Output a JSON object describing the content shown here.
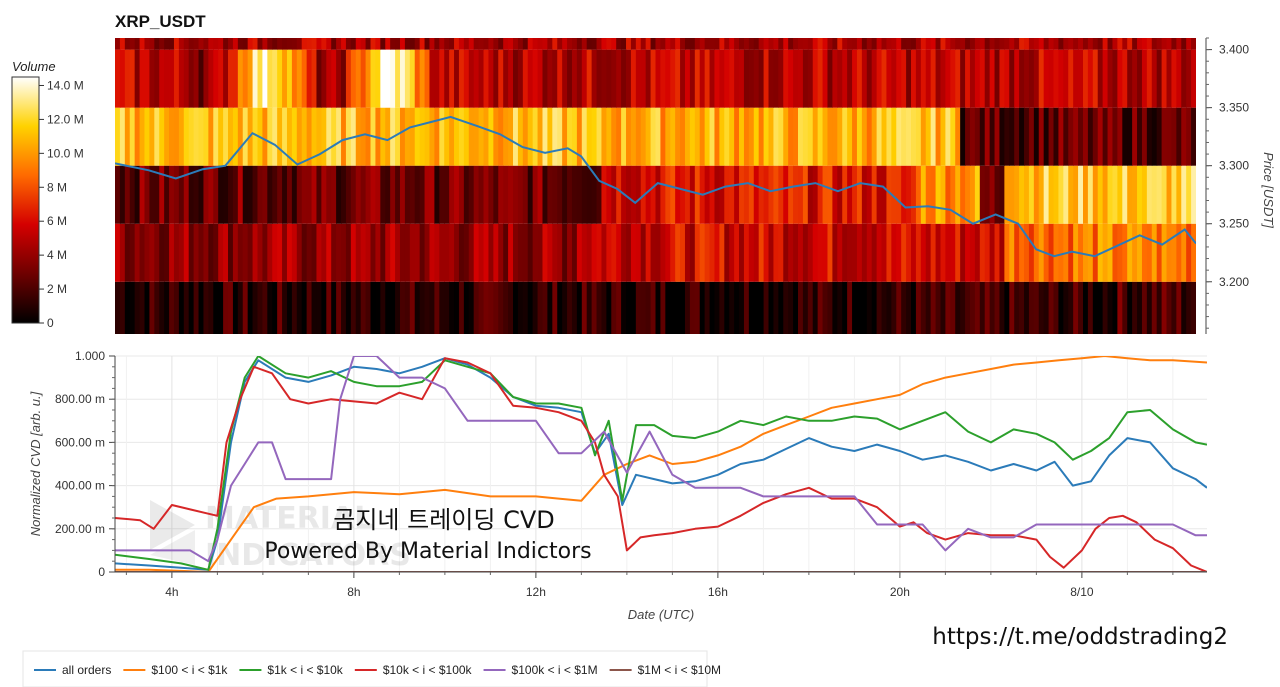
{
  "watermark": {
    "line1": "곰지네 트레이딩 CVD",
    "line2": "Powered By Material Indictors",
    "url": "https://t.me/oddstrading2",
    "logo_text": [
      "MATERIAL",
      "INDICATORS"
    ]
  },
  "chart_data": [
    {
      "type": "heatmap",
      "title": "XRP_USDT",
      "ylabel": "Price [USDT]",
      "yticks": [
        "3.200",
        "3.250",
        "3.300",
        "3.350",
        "3.400"
      ],
      "ylim": [
        3.155,
        3.41
      ],
      "xlim_hours": [
        2.75,
        26.75
      ],
      "colorbar": {
        "title": "Volume",
        "ticks": [
          "0",
          "2 M",
          "4 M",
          "6 M",
          "8 M",
          "10.0 M",
          "12.0 M",
          "14.0 M"
        ],
        "range": [
          0,
          14.5
        ]
      },
      "price_bins": [
        {
          "low": 3.155,
          "high": 3.2,
          "level": 0.08
        },
        {
          "low": 3.2,
          "high": 3.25,
          "level": 0.28
        },
        {
          "low": 3.25,
          "high": 3.3,
          "level": 0.25
        },
        {
          "low": 3.3,
          "high": 3.35,
          "level": 0.62
        },
        {
          "low": 3.35,
          "high": 3.4,
          "level": 0.4
        },
        {
          "low": 3.4,
          "high": 3.41,
          "level": 0.32
        }
      ],
      "price_series": {
        "color": "#2b7bb9",
        "hours": [
          2.75,
          3.5,
          4.1,
          4.7,
          5.2,
          5.8,
          6.3,
          6.8,
          7.3,
          7.8,
          8.3,
          8.8,
          9.3,
          9.8,
          10.2,
          10.8,
          11.3,
          11.8,
          12.3,
          12.8,
          13.1,
          13.5,
          13.9,
          14.3,
          14.8,
          15.3,
          15.8,
          16.3,
          16.8,
          17.3,
          17.8,
          18.3,
          18.8,
          19.3,
          19.8,
          20.3,
          20.8,
          21.3,
          21.8,
          22.3,
          22.8,
          23.2,
          23.6,
          24.0,
          24.5,
          25.0,
          25.5,
          26.0,
          26.5,
          26.75
        ],
        "prices": [
          3.302,
          3.296,
          3.289,
          3.297,
          3.3,
          3.328,
          3.318,
          3.301,
          3.31,
          3.322,
          3.327,
          3.322,
          3.333,
          3.338,
          3.342,
          3.334,
          3.327,
          3.316,
          3.311,
          3.315,
          3.308,
          3.287,
          3.28,
          3.268,
          3.285,
          3.28,
          3.275,
          3.282,
          3.285,
          3.278,
          3.282,
          3.285,
          3.278,
          3.285,
          3.282,
          3.264,
          3.265,
          3.262,
          3.25,
          3.258,
          3.25,
          3.228,
          3.222,
          3.226,
          3.222,
          3.231,
          3.24,
          3.232,
          3.245,
          3.233
        ]
      }
    },
    {
      "type": "line",
      "ylabel": "Normalized CVD [arb. u.]",
      "xlabel": "Date (UTC)",
      "yticks": [
        "0",
        "200.00 m",
        "400.00 m",
        "600.00 m",
        "800.00 m",
        "1.000"
      ],
      "ylim": [
        0,
        1.0
      ],
      "xlim_hours": [
        2.75,
        26.75
      ],
      "x_ticks": [
        {
          "hour": 4,
          "label": "4h"
        },
        {
          "hour": 8,
          "label": "8h"
        },
        {
          "hour": 12,
          "label": "12h"
        },
        {
          "hour": 16,
          "label": "16h"
        },
        {
          "hour": 20,
          "label": "20h"
        },
        {
          "hour": 24,
          "label": "8/10"
        }
      ],
      "series": [
        {
          "name": "all orders",
          "color": "#2b7bb9",
          "hours": [
            2.75,
            3.5,
            4.2,
            4.8,
            5.0,
            5.3,
            5.6,
            5.9,
            6.5,
            7.0,
            7.5,
            8.0,
            8.5,
            9.0,
            9.5,
            10.0,
            10.5,
            11.0,
            11.5,
            12.0,
            12.5,
            13.0,
            13.3,
            13.6,
            13.9,
            14.2,
            14.6,
            15.0,
            15.5,
            16.0,
            16.5,
            17.0,
            17.5,
            18.0,
            18.5,
            19.0,
            19.5,
            20.0,
            20.5,
            21.0,
            21.5,
            22.0,
            22.5,
            23.0,
            23.4,
            23.8,
            24.2,
            24.6,
            25.0,
            25.5,
            26.0,
            26.5,
            26.75
          ],
          "values": [
            0.04,
            0.03,
            0.02,
            0.01,
            0.15,
            0.6,
            0.88,
            0.98,
            0.9,
            0.88,
            0.91,
            0.95,
            0.94,
            0.92,
            0.95,
            0.99,
            0.96,
            0.9,
            0.81,
            0.77,
            0.76,
            0.74,
            0.55,
            0.64,
            0.31,
            0.45,
            0.43,
            0.41,
            0.42,
            0.45,
            0.5,
            0.52,
            0.57,
            0.62,
            0.58,
            0.56,
            0.59,
            0.56,
            0.52,
            0.54,
            0.51,
            0.47,
            0.5,
            0.47,
            0.51,
            0.4,
            0.42,
            0.54,
            0.62,
            0.6,
            0.48,
            0.43,
            0.39
          ]
        },
        {
          "name": "$100 < i < $1k",
          "color": "#ff7f0e",
          "hours": [
            2.75,
            3.5,
            4.2,
            4.8,
            5.3,
            5.8,
            6.3,
            7.0,
            8.0,
            9.0,
            10.0,
            11.0,
            12.0,
            12.5,
            13.0,
            13.5,
            14.0,
            14.5,
            15.0,
            15.5,
            16.0,
            16.5,
            17.0,
            17.5,
            18.0,
            18.5,
            19.0,
            19.5,
            20.0,
            20.5,
            21.0,
            21.5,
            22.0,
            22.5,
            23.0,
            23.5,
            24.0,
            24.5,
            25.0,
            25.5,
            26.0,
            26.75
          ],
          "values": [
            0.01,
            0.01,
            0.005,
            0.0,
            0.15,
            0.3,
            0.34,
            0.35,
            0.37,
            0.36,
            0.38,
            0.35,
            0.35,
            0.34,
            0.33,
            0.45,
            0.5,
            0.54,
            0.5,
            0.51,
            0.54,
            0.58,
            0.64,
            0.68,
            0.72,
            0.76,
            0.78,
            0.8,
            0.82,
            0.87,
            0.9,
            0.92,
            0.94,
            0.96,
            0.97,
            0.98,
            0.99,
            1.0,
            0.99,
            0.98,
            0.98,
            0.97
          ]
        },
        {
          "name": "$1k < i < $10k",
          "color": "#2ca02c",
          "hours": [
            2.75,
            3.5,
            4.2,
            4.8,
            5.0,
            5.3,
            5.6,
            5.9,
            6.5,
            7.0,
            7.5,
            8.0,
            8.5,
            9.0,
            9.5,
            10.0,
            10.5,
            11.0,
            11.5,
            12.0,
            12.5,
            13.0,
            13.3,
            13.6,
            13.9,
            14.2,
            14.6,
            15.0,
            15.5,
            16.0,
            16.5,
            17.0,
            17.5,
            18.0,
            18.5,
            19.0,
            19.5,
            20.0,
            20.5,
            21.0,
            21.5,
            22.0,
            22.5,
            23.0,
            23.4,
            23.8,
            24.2,
            24.6,
            25.0,
            25.5,
            26.0,
            26.5,
            26.75
          ],
          "values": [
            0.08,
            0.06,
            0.04,
            0.01,
            0.2,
            0.65,
            0.9,
            1.0,
            0.92,
            0.9,
            0.93,
            0.88,
            0.86,
            0.86,
            0.88,
            0.98,
            0.95,
            0.92,
            0.81,
            0.78,
            0.78,
            0.76,
            0.54,
            0.7,
            0.33,
            0.68,
            0.68,
            0.63,
            0.62,
            0.65,
            0.7,
            0.68,
            0.72,
            0.7,
            0.7,
            0.72,
            0.71,
            0.66,
            0.7,
            0.74,
            0.65,
            0.6,
            0.66,
            0.64,
            0.6,
            0.52,
            0.56,
            0.62,
            0.74,
            0.75,
            0.66,
            0.6,
            0.59
          ]
        },
        {
          "name": "$10k < i < $100k",
          "color": "#d62728",
          "hours": [
            2.75,
            3.3,
            3.6,
            4.0,
            4.4,
            4.8,
            5.0,
            5.2,
            5.5,
            5.8,
            6.2,
            6.6,
            7.0,
            7.5,
            8.0,
            8.5,
            9.0,
            9.5,
            10.0,
            10.5,
            11.0,
            11.5,
            12.0,
            12.5,
            13.0,
            13.3,
            13.5,
            13.8,
            14.0,
            14.3,
            14.6,
            15.0,
            15.5,
            16.0,
            16.5,
            17.0,
            17.5,
            18.0,
            18.5,
            19.0,
            19.5,
            20.0,
            20.3,
            20.6,
            21.0,
            21.5,
            22.0,
            22.5,
            23.0,
            23.3,
            23.6,
            24.0,
            24.3,
            24.6,
            24.9,
            25.2,
            25.6,
            26.0,
            26.4,
            26.75
          ],
          "values": [
            0.25,
            0.24,
            0.2,
            0.31,
            0.29,
            0.27,
            0.26,
            0.6,
            0.8,
            0.95,
            0.92,
            0.8,
            0.78,
            0.8,
            0.79,
            0.78,
            0.83,
            0.8,
            0.99,
            0.97,
            0.92,
            0.77,
            0.76,
            0.74,
            0.7,
            0.6,
            0.45,
            0.35,
            0.1,
            0.16,
            0.17,
            0.18,
            0.2,
            0.21,
            0.26,
            0.32,
            0.36,
            0.39,
            0.34,
            0.34,
            0.3,
            0.21,
            0.23,
            0.18,
            0.15,
            0.18,
            0.17,
            0.17,
            0.15,
            0.07,
            0.02,
            0.1,
            0.2,
            0.25,
            0.26,
            0.23,
            0.15,
            0.11,
            0.03,
            0.0
          ]
        },
        {
          "name": "$100k < i < $1M",
          "color": "#9467bd",
          "hours": [
            2.75,
            3.5,
            4.0,
            4.4,
            4.8,
            5.0,
            5.3,
            5.6,
            5.9,
            6.2,
            6.5,
            7.0,
            7.5,
            7.7,
            8.0,
            8.5,
            9.0,
            9.5,
            10.0,
            10.5,
            11.0,
            11.5,
            12.0,
            12.5,
            13.0,
            13.5,
            14.0,
            14.5,
            15.0,
            15.5,
            16.0,
            16.5,
            17.0,
            17.5,
            18.0,
            18.5,
            19.0,
            19.5,
            20.0,
            20.5,
            21.0,
            21.5,
            22.0,
            22.5,
            23.0,
            23.5,
            24.0,
            24.5,
            25.0,
            25.5,
            26.0,
            26.5,
            26.75
          ],
          "values": [
            0.1,
            0.1,
            0.1,
            0.1,
            0.05,
            0.15,
            0.4,
            0.5,
            0.6,
            0.6,
            0.43,
            0.43,
            0.43,
            0.8,
            1.0,
            1.0,
            0.9,
            0.9,
            0.85,
            0.7,
            0.7,
            0.7,
            0.7,
            0.55,
            0.55,
            0.65,
            0.46,
            0.65,
            0.45,
            0.39,
            0.39,
            0.39,
            0.35,
            0.35,
            0.35,
            0.35,
            0.35,
            0.22,
            0.22,
            0.22,
            0.1,
            0.2,
            0.16,
            0.16,
            0.22,
            0.22,
            0.22,
            0.22,
            0.22,
            0.22,
            0.22,
            0.17,
            0.17
          ]
        },
        {
          "name": "$1M < i < $10M",
          "color": "#8c564b",
          "hours": [
            2.75,
            26.75
          ],
          "values": [
            0,
            0
          ]
        }
      ]
    }
  ]
}
